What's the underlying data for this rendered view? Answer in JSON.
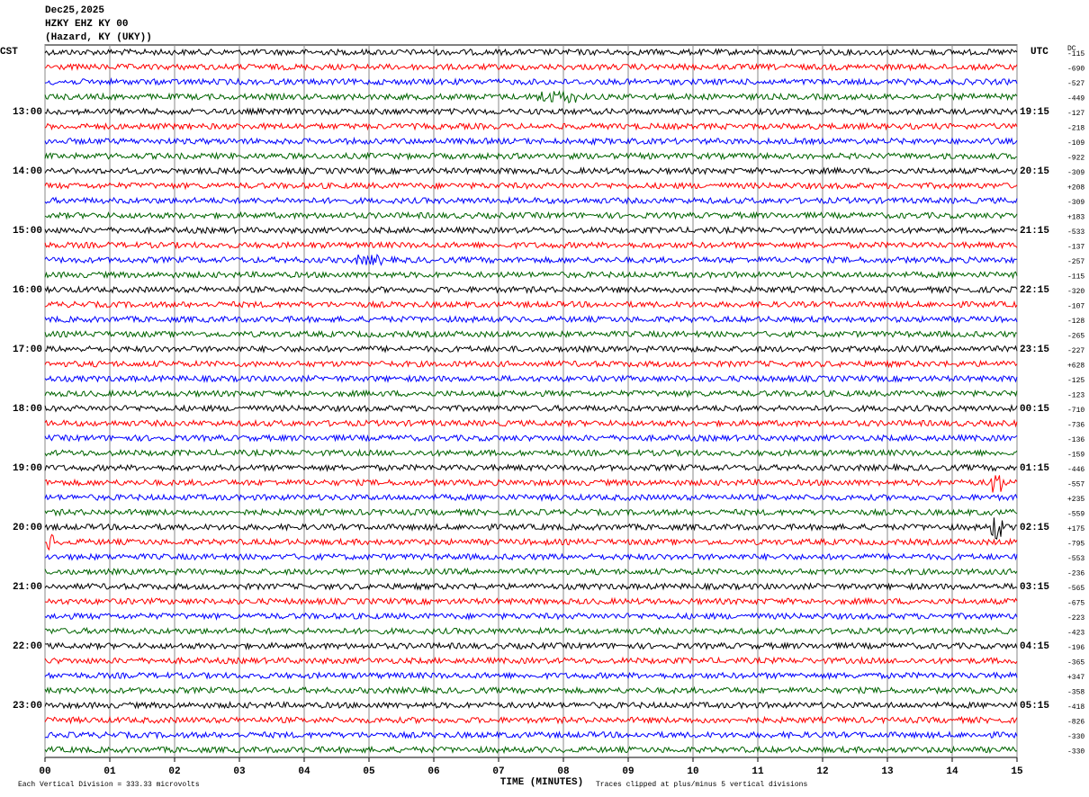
{
  "header": {
    "date": "Dec25,2025",
    "station": "HZKY EHZ KY 00",
    "location": "(Hazard, KY (UKY))"
  },
  "left_zone": "CST",
  "right_zone": "UTC",
  "dc_header": "DC",
  "left_hours": [
    "13:00",
    "14:00",
    "15:00",
    "16:00",
    "17:00",
    "18:00",
    "19:00",
    "20:00",
    "21:00",
    "22:00",
    "23:00"
  ],
  "right_hours": [
    "19:15",
    "20:15",
    "21:15",
    "22:15",
    "23:15",
    "00:15",
    "01:15",
    "02:15",
    "03:15",
    "04:15",
    "05:15"
  ],
  "dc_offsets": [
    "-115",
    "-690",
    "-527",
    "-449",
    "-127",
    "-218",
    "-109",
    "-922",
    "-309",
    "+208",
    "-309",
    "+183",
    "-533",
    "-137",
    "-257",
    "-115",
    "-320",
    "-107",
    "-128",
    "-265",
    "-227",
    "+628",
    "-125",
    "-123",
    "-710",
    "-736",
    "-136",
    "-159",
    "-446",
    "-557",
    "+235",
    "-559",
    "+175",
    "-795",
    "-553",
    "-236",
    "-565",
    "-675",
    "-223",
    "-423",
    "-196",
    "-365",
    "+347",
    "-358",
    "-418",
    "-826",
    "-330",
    "-330"
  ],
  "trace_colors": [
    "#000000",
    "#ff0000",
    "#0000ff",
    "#006400"
  ],
  "x_axis": {
    "label": "TIME (MINUTES)",
    "ticks": [
      "00",
      "01",
      "02",
      "03",
      "04",
      "05",
      "06",
      "07",
      "08",
      "09",
      "10",
      "11",
      "12",
      "13",
      "14",
      "15"
    ]
  },
  "footer": {
    "scale": "Each Vertical Division =  333.33 microvolts",
    "clip": "Traces clipped at plus/minus 5 vertical divisions"
  }
}
